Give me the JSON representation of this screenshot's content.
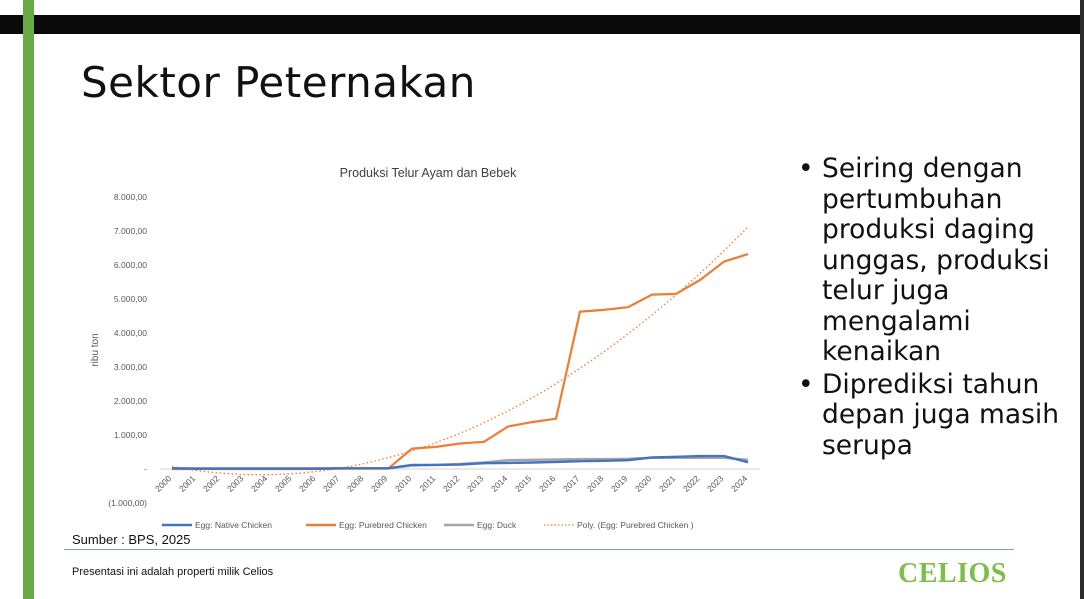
{
  "slide": {
    "title": "Sektor Peternakan",
    "bullets": [
      "Seiring dengan pertumbuhan produksi daging unggas, produksi telur juga mengalami kenaikan",
      "Diprediksi tahun depan juga masih serupa"
    ],
    "bullet_glyph": "•",
    "source": "Sumber : BPS, 2025",
    "footer": "Presentasi ini adalah properti milik Celios",
    "logo": "CELIOS"
  },
  "colors": {
    "accent_green": "#6aaa45",
    "logo_green": "#7bbf4a",
    "native_chicken": "#4472c4",
    "purebred_chicken": "#ed7d31",
    "duck": "#a5a5a5",
    "trend": "#ed7d31"
  },
  "chart_data": {
    "type": "line",
    "title": "Produksi Telur Ayam dan Bebek",
    "ylabel": "ribu ton",
    "xlabel": "",
    "ylim": [
      -1000,
      8000
    ],
    "ytick_labels": [
      "(1.000,00)",
      "-",
      "1.000,00",
      "2.000,00",
      "3.000,00",
      "4.000,00",
      "5.000,00",
      "6.000,00",
      "7.000,00",
      "8.000,00"
    ],
    "categories": [
      "2000",
      "2001",
      "2002",
      "2003",
      "2004",
      "2005",
      "2006",
      "2007",
      "2008",
      "2009",
      "2010",
      "2011",
      "2012",
      "2013",
      "2014",
      "2015",
      "2016",
      "2017",
      "2018",
      "2019",
      "2020",
      "2021",
      "2022",
      "2023",
      "2024"
    ],
    "series": [
      {
        "name": "Egg: Native Chicken",
        "values": [
          20,
          10,
          10,
          10,
          10,
          10,
          10,
          20,
          20,
          20,
          120,
          120,
          130,
          170,
          180,
          190,
          210,
          230,
          240,
          260,
          340,
          360,
          380,
          380,
          200
        ]
      },
      {
        "name": "Egg: Purebred Chicken",
        "values": [
          0,
          0,
          0,
          0,
          0,
          0,
          0,
          10,
          10,
          10,
          600,
          650,
          750,
          800,
          1250,
          1380,
          1480,
          4630,
          4680,
          4760,
          5130,
          5150,
          5560,
          6100,
          6320
        ]
      },
      {
        "name": "Egg: Duck",
        "values": [
          20,
          20,
          20,
          20,
          20,
          20,
          20,
          20,
          20,
          20,
          100,
          120,
          150,
          190,
          260,
          270,
          280,
          290,
          290,
          300,
          330,
          330,
          330,
          330,
          270
        ]
      }
    ],
    "trendline": {
      "name": "Poly. (Egg: Purebred Chicken )",
      "of": "Egg: Purebred Chicken"
    },
    "legend_position": "bottom",
    "grid": false
  }
}
